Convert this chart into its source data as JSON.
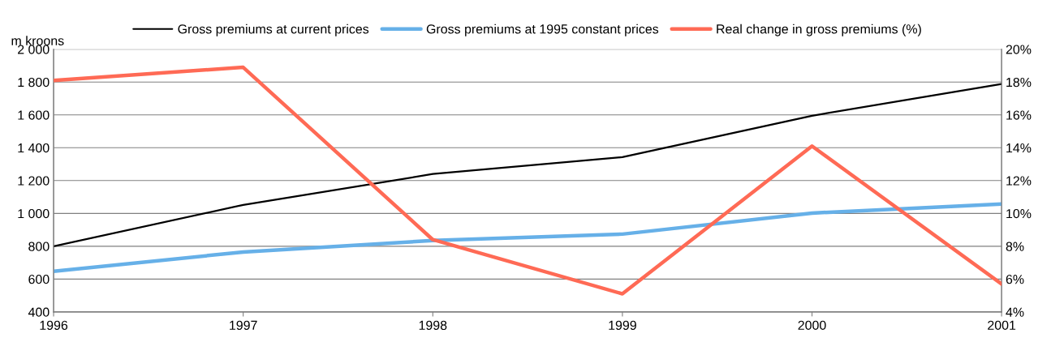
{
  "chart_data": {
    "type": "line",
    "ylabel": "m kroons",
    "categories": [
      "1996",
      "1997",
      "1998",
      "1999",
      "2000",
      "2001"
    ],
    "series": [
      {
        "name": "Gross premiums at current prices",
        "color": "#000000",
        "values": [
          800,
          1052,
          1240,
          1343,
          1595,
          1788
        ]
      },
      {
        "name": "Gross premiums at 1995 constant prices",
        "color": "#66b0e8",
        "values": [
          647,
          765,
          835,
          874,
          1002,
          1057
        ]
      },
      {
        "name": "Real change in gross premiums (%)",
        "color": "#ff6a55",
        "axis": "y2",
        "values": [
          18.1,
          18.9,
          8.4,
          5.1,
          14.1,
          5.7
        ]
      }
    ],
    "ylim": [
      400,
      2000
    ],
    "yticks": [
      400,
      600,
      800,
      {
        "value": 1000,
        "label": "1 000"
      },
      {
        "value": 1200,
        "label": "1 200"
      },
      {
        "value": 1400,
        "label": "1 400"
      },
      {
        "value": 1600,
        "label": "1 600"
      },
      {
        "value": 1800,
        "label": "1 800"
      },
      {
        "value": 2000,
        "label": "2 000"
      }
    ],
    "y2lim": [
      4,
      20
    ],
    "y2ticks": [
      {
        "value": 4,
        "label": "4%"
      },
      {
        "value": 6,
        "label": "6%"
      },
      {
        "value": 8,
        "label": "8%"
      },
      {
        "value": 10,
        "label": "10%"
      },
      {
        "value": 12,
        "label": "12%"
      },
      {
        "value": 14,
        "label": "14%"
      },
      {
        "value": 16,
        "label": "16%"
      },
      {
        "value": 18,
        "label": "18%"
      },
      {
        "value": 20,
        "label": "20%"
      }
    ],
    "grid": "y",
    "legend": "top",
    "marker": "none",
    "line_style": "solid"
  }
}
